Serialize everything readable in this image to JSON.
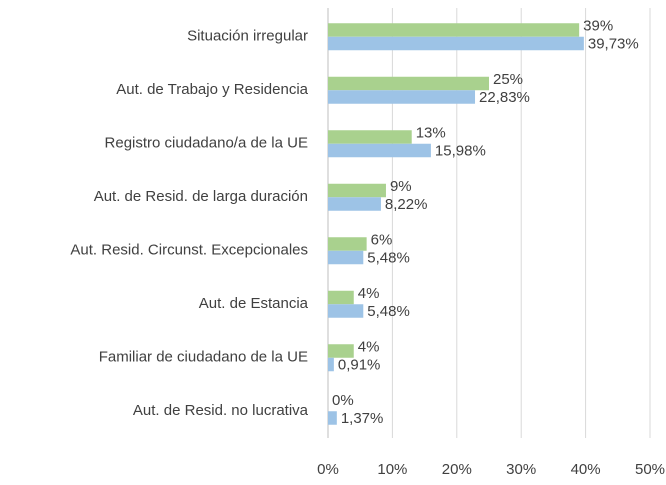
{
  "chart_data": {
    "type": "bar",
    "orientation": "horizontal",
    "categories": [
      "Situación irregular",
      "Aut. de Trabajo y Residencia",
      "Registro ciudadano/a de la UE",
      "Aut. de Resid. de larga duración",
      "Aut. Resid. Circunst. Excepcionales",
      "Aut. de Estancia",
      "Familiar de ciudadano de la UE",
      "Aut. de Resid. no lucrativa"
    ],
    "series": [
      {
        "color": "#a9d18e",
        "values": [
          39,
          25,
          13,
          9,
          6,
          4,
          4,
          0
        ],
        "value_labels": [
          "39%",
          "25%",
          "13%",
          "9%",
          "6%",
          "4%",
          "4%",
          "0%"
        ]
      },
      {
        "color": "#9dc3e6",
        "values": [
          39.73,
          22.83,
          15.98,
          8.22,
          5.48,
          5.48,
          0.91,
          1.37
        ],
        "value_labels": [
          "39,73%",
          "22,83%",
          "15,98%",
          "8,22%",
          "5,48%",
          "5,48%",
          "0,91%",
          "1,37%"
        ]
      }
    ],
    "xlim": [
      0,
      50
    ],
    "xticks": [
      {
        "value": 0,
        "label": "0%"
      },
      {
        "value": 10,
        "label": "10%"
      },
      {
        "value": 20,
        "label": "20%"
      },
      {
        "value": 30,
        "label": "30%"
      },
      {
        "value": 40,
        "label": "40%"
      },
      {
        "value": 50,
        "label": "50%"
      }
    ],
    "grid": true
  }
}
